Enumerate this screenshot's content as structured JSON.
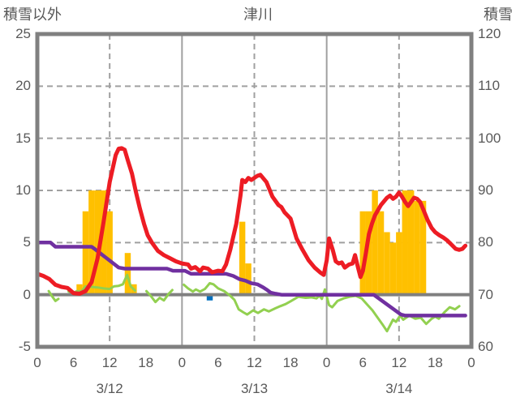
{
  "header": {
    "left_axis_title": "積雪以外",
    "chart_title": "津川",
    "right_axis_title": "積雪"
  },
  "chart_data": {
    "type": "line",
    "title": "津川",
    "colors": {
      "red": "#ed1c24",
      "purple": "#7030a0",
      "green": "#92d050",
      "orange": "#ffc000",
      "blue": "#0070c0",
      "axis": "#808080",
      "grid": "#a0a0a0",
      "text": "#595959"
    },
    "left_axis": {
      "title": "積雪以外",
      "range": [
        -5,
        25
      ],
      "ticks": [
        25,
        20,
        15,
        10,
        5,
        0,
        -5
      ]
    },
    "right_axis": {
      "title": "積雪",
      "range": [
        60,
        120
      ],
      "ticks": [
        120,
        110,
        100,
        90,
        80,
        70,
        60
      ]
    },
    "x_axis": {
      "unit": "hour",
      "range": [
        0,
        72
      ],
      "tick_hours": [
        0,
        6,
        12,
        18,
        24,
        30,
        36,
        42,
        48,
        54,
        60,
        66,
        72
      ],
      "tick_labels": [
        "0",
        "6",
        "12",
        "18",
        "0",
        "6",
        "12",
        "18",
        "0",
        "6",
        "12",
        "18",
        "0"
      ],
      "dashed_hours": [
        12,
        36,
        60
      ],
      "day_boundaries": [
        24,
        48
      ],
      "day_labels": [
        {
          "label": "3/12",
          "hour": 12
        },
        {
          "label": "3/13",
          "hour": 36
        },
        {
          "label": "3/14",
          "hour": 60
        }
      ]
    },
    "grid": {
      "h_dashed_values": [
        20,
        15,
        10,
        5
      ]
    },
    "series": [
      {
        "name": "orange-bars",
        "type": "bar",
        "color_key": "orange",
        "axis": "left",
        "bars": [
          [
            7,
            1
          ],
          [
            8,
            8
          ],
          [
            9,
            10
          ],
          [
            10,
            10
          ],
          [
            11,
            10
          ],
          [
            12,
            8
          ],
          [
            15,
            4
          ],
          [
            16,
            1
          ],
          [
            34,
            7
          ],
          [
            35,
            3
          ],
          [
            54,
            8
          ],
          [
            55,
            8
          ],
          [
            56,
            10
          ],
          [
            57,
            8
          ],
          [
            58,
            6
          ],
          [
            59,
            5
          ],
          [
            60,
            6
          ],
          [
            61,
            10
          ],
          [
            62,
            10
          ],
          [
            63,
            9
          ],
          [
            64,
            9
          ]
        ]
      },
      {
        "name": "blue-bar",
        "type": "bar",
        "color_key": "blue",
        "axis": "left",
        "bars": [
          [
            28.6,
            -0.55
          ]
        ]
      },
      {
        "name": "green-line",
        "type": "line",
        "color_key": "green",
        "axis": "left",
        "segments": [
          [
            [
              1.9,
              0.35
            ],
            [
              2.4,
              -0.1
            ],
            [
              3.0,
              -0.6
            ],
            [
              3.5,
              -0.4
            ]
          ],
          [
            [
              5.2,
              0.3
            ],
            [
              6,
              0.2
            ],
            [
              6.6,
              0.35
            ],
            [
              7.3,
              0.3
            ],
            [
              8,
              0.8
            ],
            [
              9,
              0.75
            ],
            [
              10,
              0.7
            ],
            [
              11,
              0.6
            ],
            [
              12,
              0.55
            ],
            [
              12.7,
              0.8
            ],
            [
              13.5,
              0.85
            ],
            [
              14.2,
              1.0
            ],
            [
              14.9,
              1.9
            ],
            [
              15.5,
              0.8
            ],
            [
              16.2,
              0.4
            ]
          ],
          [
            [
              18.1,
              0.35
            ],
            [
              18.8,
              -0.1
            ],
            [
              19.6,
              -0.7
            ],
            [
              20.3,
              -0.3
            ],
            [
              21,
              -0.55
            ],
            [
              21.8,
              0.1
            ],
            [
              22.4,
              0.45
            ]
          ],
          [
            [
              24.3,
              0.95
            ],
            [
              25,
              0.6
            ],
            [
              25.8,
              0.3
            ],
            [
              26.3,
              0.5
            ],
            [
              27,
              0.3
            ],
            [
              27.8,
              0.55
            ],
            [
              28.6,
              1.1
            ],
            [
              29.2,
              1.0
            ],
            [
              30,
              0.6
            ],
            [
              31,
              0.35
            ],
            [
              32,
              -0.1
            ],
            [
              32.7,
              -0.5
            ],
            [
              33.4,
              -1.4
            ],
            [
              34.2,
              -1.7
            ],
            [
              34.8,
              -1.9
            ],
            [
              35.8,
              -1.5
            ],
            [
              36.6,
              -1.75
            ],
            [
              37.6,
              -1.4
            ],
            [
              38.4,
              -1.6
            ],
            [
              39.5,
              -1.3
            ],
            [
              40.3,
              -1.1
            ],
            [
              41.2,
              -0.9
            ],
            [
              42.1,
              -0.6
            ],
            [
              43.3,
              -0.2
            ],
            [
              44.5,
              -0.3
            ],
            [
              45.5,
              -0.25
            ],
            [
              46.3,
              -0.35
            ],
            [
              46.8,
              -0.1
            ],
            [
              47.2,
              -0.4
            ],
            [
              47.7,
              0.5
            ],
            [
              48.4,
              -1.0
            ],
            [
              48.9,
              -1.2
            ],
            [
              49.8,
              -0.6
            ],
            [
              50.8,
              -0.35
            ],
            [
              51.8,
              -0.2
            ],
            [
              52.8,
              -0.1
            ],
            [
              53.8,
              -0.35
            ],
            [
              54.8,
              -1.0
            ],
            [
              55.6,
              -1.5
            ],
            [
              56.2,
              -2.0
            ],
            [
              57.2,
              -2.8
            ],
            [
              58,
              -3.5
            ],
            [
              59,
              -2.4
            ],
            [
              59.5,
              -2.6
            ],
            [
              60.2,
              -2.0
            ],
            [
              60.7,
              -2.4
            ],
            [
              61.7,
              -2.0
            ],
            [
              62.7,
              -2.3
            ],
            [
              63.6,
              -2.2
            ],
            [
              64.5,
              -2.8
            ],
            [
              65.4,
              -2.3
            ],
            [
              66,
              -2.1
            ],
            [
              66.6,
              -2.3
            ],
            [
              67.5,
              -1.7
            ],
            [
              68.4,
              -1.2
            ],
            [
              69.3,
              -1.4
            ],
            [
              70,
              -1.1
            ]
          ]
        ]
      },
      {
        "name": "purple-line",
        "type": "line",
        "color_key": "purple",
        "axis": "left",
        "segments": [
          [
            [
              0,
              5.0
            ],
            [
              2.2,
              5.0
            ],
            [
              3,
              4.6
            ],
            [
              9,
              4.6
            ],
            [
              9.5,
              4.4
            ],
            [
              13.5,
              2.6
            ],
            [
              14.5,
              2.5
            ],
            [
              21.5,
              2.5
            ],
            [
              22.5,
              2.3
            ],
            [
              24.5,
              2.3
            ],
            [
              25.5,
              2.0
            ],
            [
              31.3,
              2.0
            ],
            [
              32.5,
              1.8
            ],
            [
              33.5,
              1.5
            ],
            [
              34.5,
              1.35
            ],
            [
              35.5,
              1.1
            ],
            [
              36.5,
              1.0
            ],
            [
              37.5,
              0.7
            ],
            [
              38,
              0.5
            ],
            [
              38.7,
              0.2
            ],
            [
              39.5,
              0.1
            ],
            [
              40.5,
              0.0
            ],
            [
              55.8,
              0.0
            ],
            [
              60.3,
              -1.9
            ],
            [
              61,
              -2.0
            ],
            [
              71,
              -2.0
            ]
          ]
        ]
      },
      {
        "name": "red-line",
        "type": "line",
        "color_key": "red",
        "axis": "left",
        "segments": [
          [
            [
              0,
              2.0
            ],
            [
              1,
              1.8
            ],
            [
              2,
              1.5
            ],
            [
              3,
              0.95
            ],
            [
              4,
              0.75
            ],
            [
              5,
              0.65
            ],
            [
              6,
              0.15
            ],
            [
              7,
              0.1
            ],
            [
              8,
              0.35
            ],
            [
              9,
              1.2
            ],
            [
              10,
              3.5
            ],
            [
              11,
              7.0
            ],
            [
              12,
              10.8
            ],
            [
              13,
              13.4
            ],
            [
              13.5,
              14.0
            ],
            [
              14,
              14.05
            ],
            [
              14.5,
              13.9
            ],
            [
              15,
              12.9
            ],
            [
              15.7,
              11.6
            ],
            [
              16.3,
              10.0
            ],
            [
              17,
              8.3
            ],
            [
              17.7,
              6.8
            ],
            [
              18.3,
              5.7
            ],
            [
              19,
              5.0
            ],
            [
              20,
              4.2
            ],
            [
              21,
              3.8
            ],
            [
              22,
              3.5
            ],
            [
              23,
              3.2
            ],
            [
              24,
              3.0
            ],
            [
              25,
              2.9
            ],
            [
              25.5,
              2.5
            ],
            [
              26.2,
              2.65
            ],
            [
              27,
              2.25
            ],
            [
              27.5,
              2.6
            ],
            [
              28.3,
              2.5
            ],
            [
              29,
              2.15
            ],
            [
              30,
              2.3
            ],
            [
              30.7,
              2.25
            ],
            [
              31.3,
              2.9
            ],
            [
              32,
              4.3
            ],
            [
              33,
              6.8
            ],
            [
              33.7,
              9.5
            ],
            [
              34,
              11.0
            ],
            [
              34.5,
              10.8
            ],
            [
              35,
              11.2
            ],
            [
              35.5,
              11.0
            ],
            [
              36.5,
              11.4
            ],
            [
              37,
              11.5
            ],
            [
              38,
              10.8
            ],
            [
              39,
              9.4
            ],
            [
              40,
              8.6
            ],
            [
              40.5,
              8.4
            ],
            [
              41,
              7.9
            ],
            [
              42,
              7.3
            ],
            [
              43,
              5.4
            ],
            [
              44,
              4.3
            ],
            [
              45,
              3.3
            ],
            [
              46,
              2.6
            ],
            [
              47,
              2.1
            ],
            [
              47.5,
              1.9
            ],
            [
              48,
              3.3
            ],
            [
              48.4,
              5.4
            ],
            [
              49,
              4.3
            ],
            [
              49.5,
              3.2
            ],
            [
              50,
              3.0
            ],
            [
              50.5,
              3.1
            ],
            [
              51,
              2.6
            ],
            [
              51.7,
              2.9
            ],
            [
              52.3,
              3.0
            ],
            [
              52.7,
              3.8
            ],
            [
              53.2,
              2.6
            ],
            [
              53.6,
              1.7
            ],
            [
              54,
              2.3
            ],
            [
              54.5,
              4.0
            ],
            [
              55,
              5.8
            ],
            [
              55.5,
              6.8
            ],
            [
              56,
              7.6
            ],
            [
              57,
              8.6
            ],
            [
              58,
              9.3
            ],
            [
              58.5,
              9.5
            ],
            [
              59,
              9.2
            ],
            [
              59.5,
              9.4
            ],
            [
              60,
              9.8
            ],
            [
              60.5,
              9.4
            ],
            [
              61,
              8.9
            ],
            [
              61.5,
              8.5
            ],
            [
              62,
              8.9
            ],
            [
              62.5,
              9.3
            ],
            [
              63,
              9.2
            ],
            [
              63.5,
              8.9
            ],
            [
              64,
              8.2
            ],
            [
              64.7,
              7.2
            ],
            [
              65.4,
              6.4
            ],
            [
              66,
              6.0
            ],
            [
              66.7,
              5.7
            ],
            [
              67.3,
              5.5
            ],
            [
              68,
              5.2
            ],
            [
              68.7,
              4.8
            ],
            [
              69.4,
              4.4
            ],
            [
              70,
              4.3
            ],
            [
              70.5,
              4.4
            ],
            [
              71,
              4.7
            ]
          ]
        ]
      }
    ]
  }
}
